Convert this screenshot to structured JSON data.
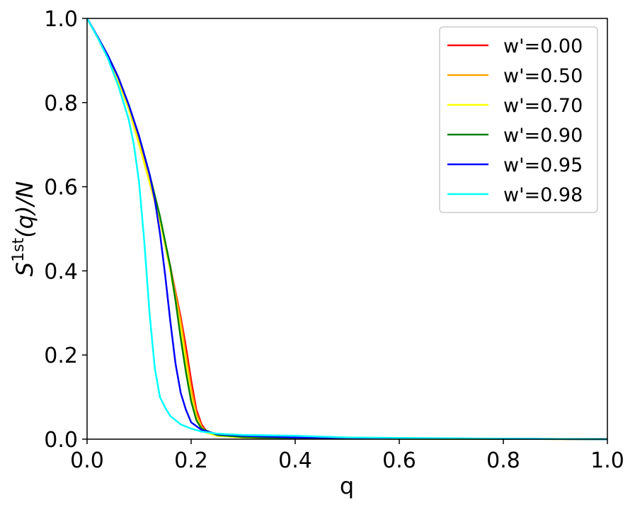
{
  "chart_data": {
    "type": "line",
    "xlabel": "q",
    "ylabel": "S^1st(q)/N",
    "ylabel_parts": {
      "base": "S",
      "sup": "1st",
      "tail": "(q)/N"
    },
    "xlim": [
      0.0,
      1.0
    ],
    "ylim": [
      0.0,
      1.0
    ],
    "xticks": [
      0.0,
      0.2,
      0.4,
      0.6,
      0.8,
      1.0
    ],
    "yticks": [
      0.0,
      0.2,
      0.4,
      0.6,
      0.8,
      1.0
    ],
    "xtick_labels": [
      "0.0",
      "0.2",
      "0.4",
      "0.6",
      "0.8",
      "1.0"
    ],
    "ytick_labels": [
      "0.0",
      "0.2",
      "0.4",
      "0.6",
      "0.8",
      "1.0"
    ],
    "grid": false,
    "legend_position": "top-right",
    "series": [
      {
        "name": "w'=0.00",
        "color": "#ff0000",
        "x": [
          0,
          0.02,
          0.04,
          0.06,
          0.08,
          0.1,
          0.12,
          0.14,
          0.16,
          0.18,
          0.19,
          0.2,
          0.21,
          0.22,
          0.23,
          0.25,
          0.3,
          0.4,
          0.6,
          0.8,
          1.0
        ],
        "y": [
          1.0,
          0.955,
          0.91,
          0.855,
          0.79,
          0.71,
          0.62,
          0.52,
          0.41,
          0.29,
          0.22,
          0.14,
          0.07,
          0.035,
          0.018,
          0.008,
          0.004,
          0.002,
          0.001,
          0.0005,
          0.0
        ]
      },
      {
        "name": "w'=0.50",
        "color": "#ffa500",
        "x": [
          0,
          0.02,
          0.04,
          0.06,
          0.08,
          0.1,
          0.12,
          0.14,
          0.16,
          0.18,
          0.19,
          0.2,
          0.21,
          0.22,
          0.23,
          0.25,
          0.3,
          0.4,
          0.6,
          0.8,
          1.0
        ],
        "y": [
          1.0,
          0.955,
          0.91,
          0.855,
          0.79,
          0.71,
          0.62,
          0.52,
          0.41,
          0.28,
          0.2,
          0.12,
          0.06,
          0.03,
          0.017,
          0.008,
          0.004,
          0.002,
          0.001,
          0.0005,
          0.0
        ]
      },
      {
        "name": "w'=0.70",
        "color": "#ffff00",
        "x": [
          0,
          0.02,
          0.04,
          0.06,
          0.08,
          0.1,
          0.12,
          0.14,
          0.16,
          0.18,
          0.19,
          0.2,
          0.21,
          0.22,
          0.23,
          0.25,
          0.3,
          0.4,
          0.6,
          0.8,
          1.0
        ],
        "y": [
          1.0,
          0.955,
          0.905,
          0.85,
          0.785,
          0.7,
          0.61,
          0.52,
          0.4,
          0.26,
          0.18,
          0.1,
          0.05,
          0.025,
          0.015,
          0.008,
          0.004,
          0.002,
          0.001,
          0.0005,
          0.0
        ]
      },
      {
        "name": "w'=0.90",
        "color": "#008000",
        "x": [
          0,
          0.02,
          0.04,
          0.06,
          0.08,
          0.1,
          0.12,
          0.14,
          0.16,
          0.17,
          0.18,
          0.19,
          0.2,
          0.21,
          0.22,
          0.25,
          0.3,
          0.4,
          0.6,
          0.8,
          1.0
        ],
        "y": [
          1.0,
          0.957,
          0.912,
          0.86,
          0.795,
          0.72,
          0.63,
          0.53,
          0.41,
          0.33,
          0.24,
          0.16,
          0.09,
          0.045,
          0.025,
          0.01,
          0.005,
          0.002,
          0.001,
          0.0005,
          0.0
        ]
      },
      {
        "name": "w'=0.95",
        "color": "#0000ff",
        "x": [
          0,
          0.02,
          0.04,
          0.06,
          0.08,
          0.1,
          0.12,
          0.13,
          0.14,
          0.15,
          0.16,
          0.17,
          0.18,
          0.19,
          0.2,
          0.22,
          0.25,
          0.3,
          0.4,
          0.6,
          0.8,
          1.0
        ],
        "y": [
          1.0,
          0.957,
          0.912,
          0.86,
          0.795,
          0.72,
          0.63,
          0.57,
          0.49,
          0.39,
          0.28,
          0.18,
          0.11,
          0.07,
          0.04,
          0.022,
          0.012,
          0.008,
          0.004,
          0.002,
          0.001,
          0.0
        ]
      },
      {
        "name": "w'=0.98",
        "color": "#00ffff",
        "x": [
          0,
          0.02,
          0.04,
          0.06,
          0.08,
          0.09,
          0.1,
          0.11,
          0.12,
          0.13,
          0.14,
          0.15,
          0.16,
          0.18,
          0.2,
          0.22,
          0.25,
          0.3,
          0.4,
          0.5,
          0.6,
          0.8,
          1.0
        ],
        "y": [
          1.0,
          0.955,
          0.905,
          0.84,
          0.76,
          0.7,
          0.61,
          0.47,
          0.3,
          0.17,
          0.1,
          0.075,
          0.055,
          0.035,
          0.025,
          0.018,
          0.013,
          0.01,
          0.008,
          0.004,
          0.003,
          0.001,
          0.0
        ]
      }
    ]
  }
}
